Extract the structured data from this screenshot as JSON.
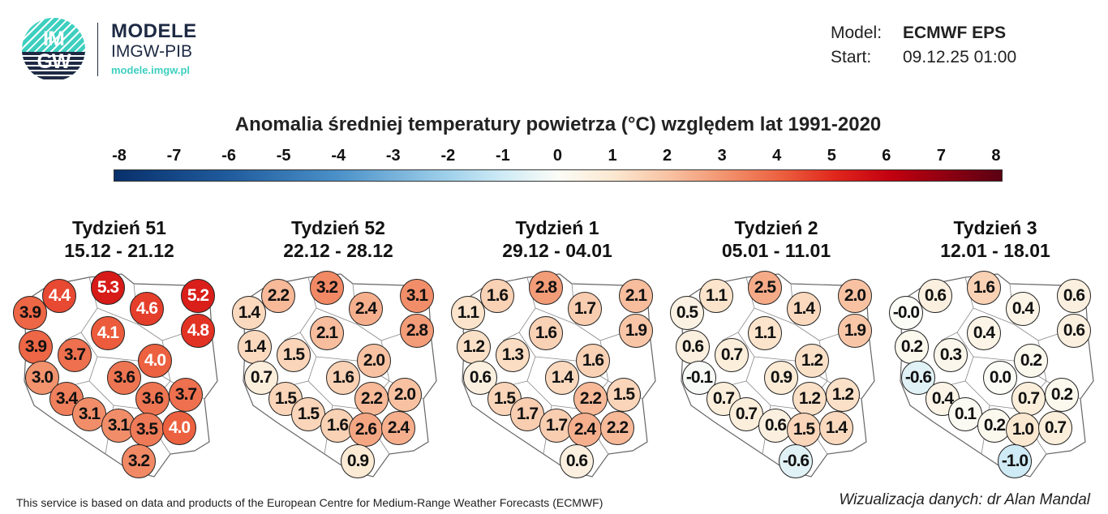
{
  "logo": {
    "circle_text_top": "IM",
    "circle_text_bottom": "GW",
    "brand_title": "MODELE",
    "brand_subtitle": "IMGW-PIB",
    "brand_url": "modele.imgw.pl"
  },
  "meta": {
    "model_label": "Model:",
    "model_value": "ECMWF EPS",
    "start_label": "Start:",
    "start_value": "09.12.25 01:00"
  },
  "title": "Anomalia średniej temperatury powietrza (°C) względem lat 1991-2020",
  "colorbar": {
    "ticks": [
      "-8",
      "-7",
      "-6",
      "-5",
      "-4",
      "-3",
      "-2",
      "-1",
      "0",
      "1",
      "2",
      "3",
      "4",
      "5",
      "6",
      "7",
      "8"
    ],
    "range": [
      -8,
      8
    ],
    "colors": {
      "-8": "#08306b",
      "-6": "#1f5a9c",
      "-4": "#4a90c8",
      "-2": "#9fd0ea",
      "-1": "#cfebf6",
      "0": "#fbfcf6",
      "1": "#fbe8d0",
      "2": "#f8c2a2",
      "3": "#f2936e",
      "4": "#ec6140",
      "5": "#e0261c",
      "6": "#c20010",
      "8": "#5a0012"
    }
  },
  "panels": [
    {
      "week": "Tydzień 51",
      "dates": "15.12 - 21.12",
      "values": [
        "4.4",
        "5.3",
        "5.2",
        "3.9",
        "4.6",
        "4.1",
        "4.8",
        "3.9",
        "3.7",
        "4.0",
        "3.0",
        "3.6",
        "3.4",
        "3.6",
        "3.7",
        "3.1",
        "3.1",
        "3.5",
        "4.0",
        "3.2"
      ]
    },
    {
      "week": "Tydzień 52",
      "dates": "22.12 - 28.12",
      "values": [
        "2.2",
        "3.2",
        "3.1",
        "1.4",
        "2.4",
        "2.1",
        "2.8",
        "1.4",
        "1.5",
        "2.0",
        "0.7",
        "1.6",
        "1.5",
        "2.2",
        "2.0",
        "1.5",
        "1.6",
        "2.6",
        "2.4",
        "0.9"
      ]
    },
    {
      "week": "Tydzień 1",
      "dates": "29.12 - 04.01",
      "values": [
        "1.6",
        "2.8",
        "2.1",
        "1.1",
        "1.7",
        "1.6",
        "1.9",
        "1.2",
        "1.3",
        "1.6",
        "0.6",
        "1.4",
        "1.5",
        "2.2",
        "1.5",
        "1.7",
        "1.7",
        "2.4",
        "2.2",
        "0.6"
      ]
    },
    {
      "week": "Tydzień 2",
      "dates": "05.01 - 11.01",
      "values": [
        "1.1",
        "2.5",
        "2.0",
        "0.5",
        "1.4",
        "1.1",
        "1.9",
        "0.6",
        "0.7",
        "1.2",
        "-0.1",
        "0.9",
        "0.7",
        "1.2",
        "1.2",
        "0.7",
        "0.6",
        "1.5",
        "1.4",
        "-0.6"
      ]
    },
    {
      "week": "Tydzień 3",
      "dates": "12.01 - 18.01",
      "values": [
        "0.6",
        "1.6",
        "0.6",
        "-0.0",
        "0.4",
        "0.4",
        "0.6",
        "0.2",
        "0.3",
        "0.2",
        "-0.6",
        "0.0",
        "0.4",
        "0.7",
        "0.2",
        "0.1",
        "0.2",
        "1.0",
        "0.7",
        "-1.0"
      ]
    }
  ],
  "footer": "This service is based on data and products of the European Centre for Medium-Range Weather Forecasts (ECMWF)",
  "credit": "Wizualizacja danych: dr Alan Mandal"
}
